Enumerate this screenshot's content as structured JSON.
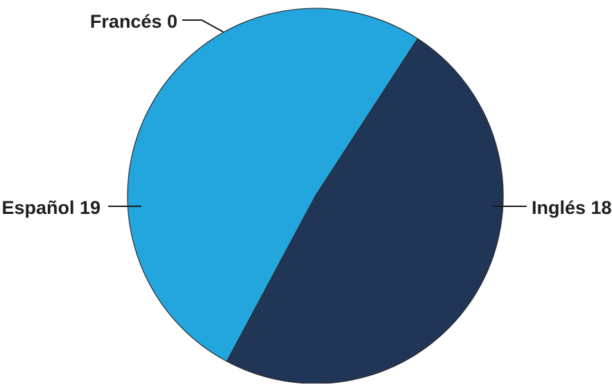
{
  "chart_data": {
    "type": "pie",
    "slices": [
      {
        "label": "Inglés",
        "value": 18,
        "display": "Inglés 18",
        "color": "#213557"
      },
      {
        "label": "Español",
        "value": 19,
        "display": "Español 19",
        "color": "#23a5de"
      },
      {
        "label": "Francés",
        "value": 0,
        "display": "Francés 0",
        "color": "#23a5de"
      }
    ],
    "start": "Francés at top, slices run clockwise",
    "legend": "none (labels beside slices)"
  }
}
